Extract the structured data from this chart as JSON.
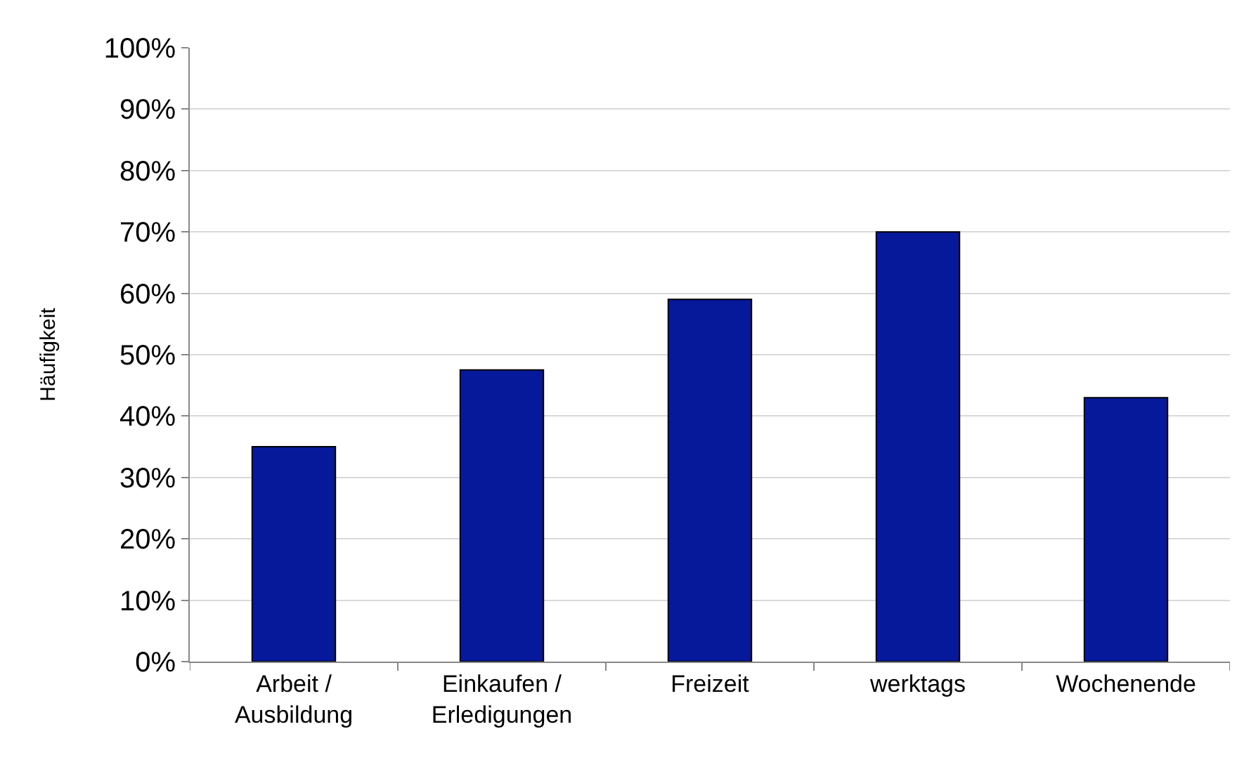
{
  "chart_data": {
    "type": "bar",
    "ylabel": "Häufigkeit",
    "categories": [
      "Arbeit /\nAusbildung",
      "Einkaufen /\nErledigungen",
      "Freizeit",
      "werktags",
      "Wochenende"
    ],
    "values": [
      35,
      47.5,
      59,
      70,
      43
    ],
    "color": "#06199b",
    "ylim": [
      0,
      100
    ],
    "yticks": [
      {
        "value": 0,
        "label": "0%"
      },
      {
        "value": 10,
        "label": "10%"
      },
      {
        "value": 20,
        "label": "20%"
      },
      {
        "value": 30,
        "label": "30%"
      },
      {
        "value": 40,
        "label": "40%"
      },
      {
        "value": 50,
        "label": "50%"
      },
      {
        "value": 60,
        "label": "60%"
      },
      {
        "value": 70,
        "label": "70%"
      },
      {
        "value": 80,
        "label": "80%"
      },
      {
        "value": 90,
        "label": "90%"
      },
      {
        "value": 100,
        "label": "100%"
      }
    ],
    "grid": "y"
  }
}
